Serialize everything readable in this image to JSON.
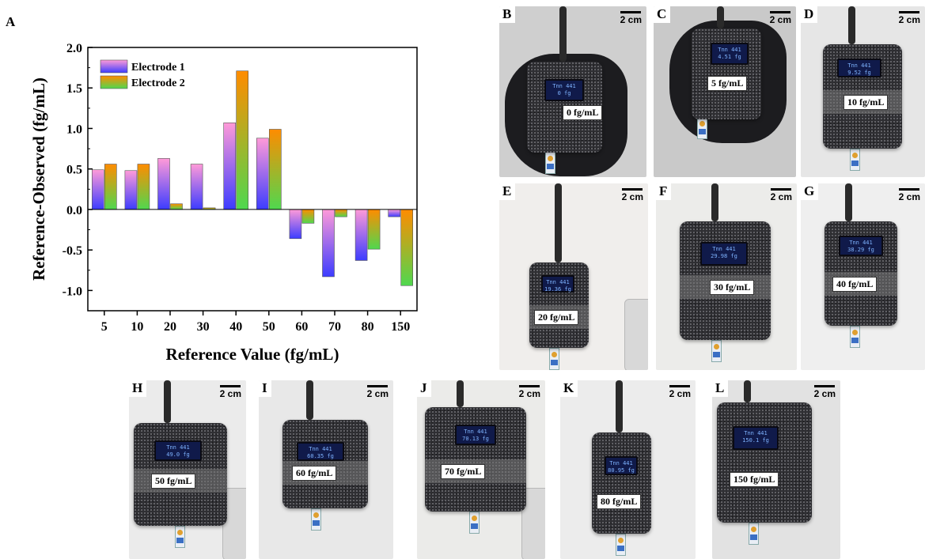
{
  "chart_data": {
    "type": "bar",
    "panel_label": "A",
    "xlabel": "Reference Value (fg/mL)",
    "ylabel": "Reference-Observed (fg/mL)",
    "categories": [
      "5",
      "10",
      "20",
      "30",
      "40",
      "50",
      "60",
      "70",
      "80",
      "150"
    ],
    "ylim": [
      -1.25,
      2.0
    ],
    "yticks": [
      -1.0,
      -0.5,
      0.0,
      0.5,
      1.0,
      1.5,
      2.0
    ],
    "ytick_labels": [
      "-1.0",
      "-0.5",
      "0.0",
      "0.5",
      "1.0",
      "1.5",
      "2.0"
    ],
    "legend_position": "top-left",
    "series": [
      {
        "name": "Electrode 1",
        "values": [
          0.49,
          0.48,
          0.63,
          0.56,
          1.07,
          0.88,
          -0.36,
          -0.83,
          -0.63,
          -0.09
        ],
        "gradient_top": "#ff9ad8",
        "gradient_bottom": "#3c3cff"
      },
      {
        "name": "Electrode 2",
        "values": [
          0.56,
          0.56,
          0.07,
          0.02,
          1.71,
          0.99,
          -0.17,
          -0.09,
          -0.49,
          -0.94
        ],
        "gradient_top": "#ff8c00",
        "gradient_bottom": "#4fd84f"
      }
    ]
  },
  "photos": {
    "scale_bar_text": "2 cm",
    "panels": [
      {
        "label": "B",
        "concentration": "0 fg/mL",
        "screen_lines": [
          "Tnn 441",
          "0 fg"
        ]
      },
      {
        "label": "C",
        "concentration": "5 fg/mL",
        "screen_lines": [
          "Tnn 441",
          "4.51 fg"
        ]
      },
      {
        "label": "D",
        "concentration": "10 fg/mL",
        "screen_lines": [
          "Tnn 441",
          "9.52 fg"
        ]
      },
      {
        "label": "E",
        "concentration": "20 fg/mL",
        "screen_lines": [
          "Tnn 441",
          "19.36 fg"
        ]
      },
      {
        "label": "F",
        "concentration": "30 fg/mL",
        "screen_lines": [
          "Tnn 441",
          "29.98 fg"
        ]
      },
      {
        "label": "G",
        "concentration": "40 fg/mL",
        "screen_lines": [
          "Tnn 441",
          "38.29 fg"
        ]
      },
      {
        "label": "H",
        "concentration": "50 fg/mL",
        "screen_lines": [
          "Tnn 441",
          "49.0 fg"
        ]
      },
      {
        "label": "I",
        "concentration": "60 fg/mL",
        "screen_lines": [
          "Tnn 441",
          "60.35 fg"
        ]
      },
      {
        "label": "J",
        "concentration": "70 fg/mL",
        "screen_lines": [
          "Tnn 441",
          "70.13 fg"
        ]
      },
      {
        "label": "K",
        "concentration": "80 fg/mL",
        "screen_lines": [
          "Tnn 441",
          "80.95 fg"
        ]
      },
      {
        "label": "L",
        "concentration": "150 fg/mL",
        "screen_lines": [
          "Tnn 441",
          "150.1 fg"
        ]
      }
    ]
  }
}
